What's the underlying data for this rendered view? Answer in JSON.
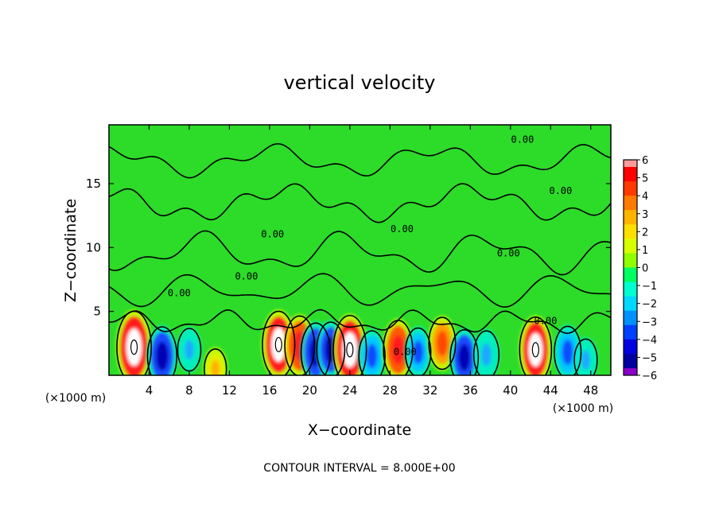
{
  "chart_data": {
    "type": "heatmap",
    "title": "vertical velocity",
    "xlabel": "X−coordinate",
    "ylabel": "Z−coordinate",
    "x_unit_left": "(×1000 m)",
    "x_unit_right": "(×1000 m)",
    "footer": "CONTOUR INTERVAL = 8.000E+00",
    "xlim": [
      0,
      50
    ],
    "ylim": [
      0,
      19.6
    ],
    "x_ticks": [
      4,
      8,
      12,
      16,
      20,
      24,
      28,
      32,
      36,
      40,
      44,
      48
    ],
    "y_ticks": [
      5,
      10,
      15
    ],
    "contour_labels": [
      {
        "text": "0.00",
        "x": 16.3,
        "y": 10.8
      },
      {
        "text": "0.00",
        "x": 29.5,
        "y": 1.6
      },
      {
        "text": "0.00",
        "x": 41.2,
        "y": 18.2
      },
      {
        "text": "0.00",
        "x": 7.0,
        "y": 6.2
      },
      {
        "text": "0.00",
        "x": 13.7,
        "y": 7.5
      },
      {
        "text": "0.00",
        "x": 29.2,
        "y": 11.2
      },
      {
        "text": "0.00",
        "x": 45.0,
        "y": 14.2
      },
      {
        "text": "0.00",
        "x": 39.8,
        "y": 9.3
      },
      {
        "text": "0.00",
        "x": 43.5,
        "y": 4.0
      }
    ],
    "colorbar": {
      "ticks": [
        "6",
        "5",
        "4",
        "3",
        "2",
        "1",
        "0",
        "−1",
        "−2",
        "−3",
        "−4",
        "−5",
        "−6"
      ],
      "colors": [
        "#ff0000",
        "#ff3a00",
        "#ff7a00",
        "#ffb400",
        "#ffe000",
        "#d8ff00",
        "#90ff00",
        "#00ff60",
        "#00ffd0",
        "#00d8ff",
        "#0090ff",
        "#0040ff",
        "#0000e0",
        "#0000a0"
      ],
      "top_color": "#ff9a9a",
      "bottom_color": "#8a00c8"
    },
    "features": [
      {
        "x": 2.5,
        "z": 2.2,
        "w": 6.0
      },
      {
        "x": 5.3,
        "z": 1.5,
        "w": -4.0
      },
      {
        "x": 8.0,
        "z": 2.0,
        "w": -1.6
      },
      {
        "x": 10.6,
        "z": 0.5,
        "w": 1.2
      },
      {
        "x": 16.9,
        "z": 2.4,
        "w": 5.2
      },
      {
        "x": 19.0,
        "z": 2.3,
        "w": 4.2
      },
      {
        "x": 20.6,
        "z": 1.8,
        "w": -4.0
      },
      {
        "x": 22.1,
        "z": 2.0,
        "w": -3.5
      },
      {
        "x": 24.0,
        "z": 2.0,
        "w": 5.5
      },
      {
        "x": 26.2,
        "z": 1.5,
        "w": -2.8
      },
      {
        "x": 28.8,
        "z": 2.0,
        "w": 4.0
      },
      {
        "x": 30.8,
        "z": 1.8,
        "w": -2.5
      },
      {
        "x": 33.2,
        "z": 2.5,
        "w": 3.0
      },
      {
        "x": 35.4,
        "z": 1.4,
        "w": -3.5
      },
      {
        "x": 37.6,
        "z": 1.6,
        "w": -2.4
      },
      {
        "x": 42.5,
        "z": 2.0,
        "w": 5.0
      },
      {
        "x": 45.7,
        "z": 1.8,
        "w": -3.0
      },
      {
        "x": 47.5,
        "z": 1.2,
        "w": -1.5
      }
    ]
  }
}
